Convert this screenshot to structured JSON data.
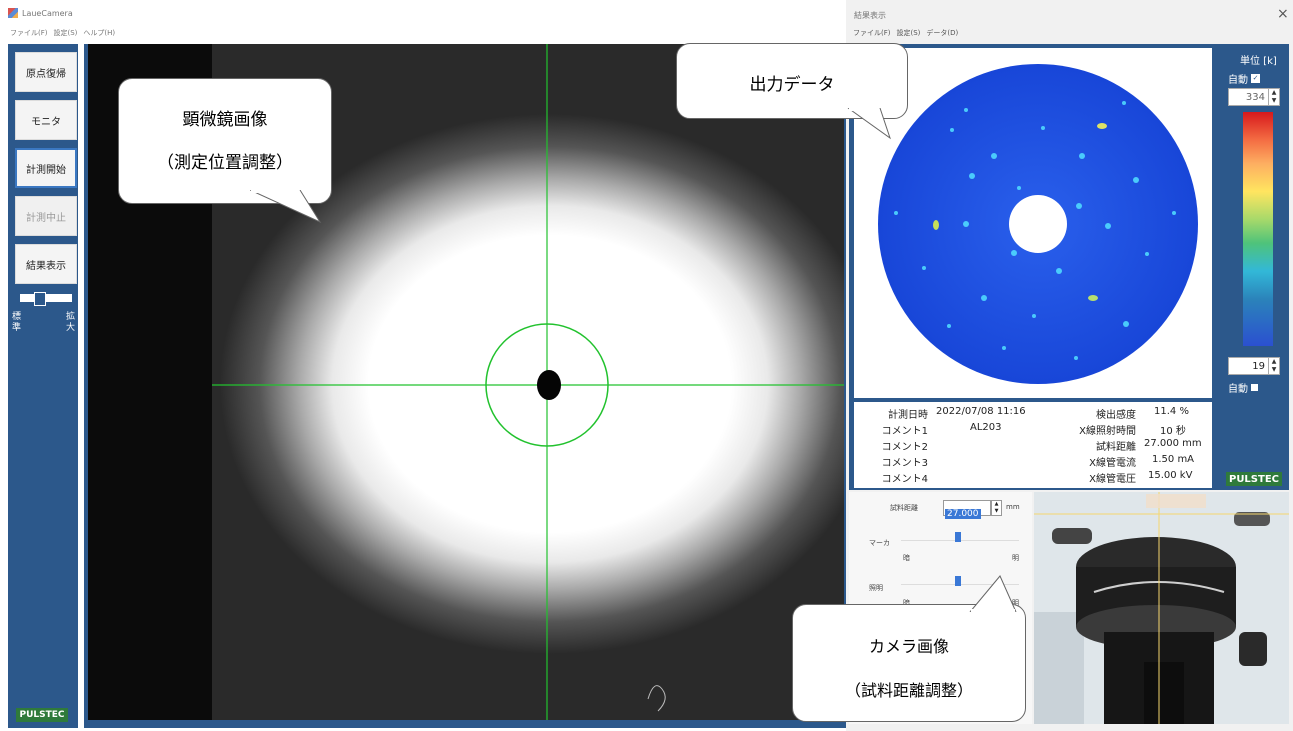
{
  "left_window": {
    "title": "LaueCamera",
    "menu": [
      "ファイル(F)",
      "設定(S)",
      "ヘルプ(H)"
    ],
    "sidebar": {
      "buttons": [
        "原点復帰",
        "モニタ",
        "計測開始",
        "計測中止",
        "結果表示"
      ],
      "zoom_labels": {
        "left_top": "標",
        "left_bottom": "準",
        "right_top": "拡",
        "right_bottom": "大"
      },
      "brand": "PULSTEC"
    },
    "callout_micro": {
      "line1": "顕微鏡画像",
      "line2": "（測定位置調整）"
    }
  },
  "right_window": {
    "title": "結果表示",
    "close": "×",
    "menu": [
      "ファイル(F)",
      "設定(S)",
      "データ(D)"
    ],
    "callout_output": "出力データ",
    "colorbar": {
      "unit": "単位 [k]",
      "auto_top": "自動",
      "max_value": "334",
      "min_value": "19",
      "auto_bottom": "自動",
      "auto_top_checked": true,
      "auto_bottom_checked": false
    },
    "info": {
      "left": [
        {
          "label": "計測日時",
          "value": "2022/07/08  11:16"
        },
        {
          "label": "コメント1",
          "value": "AL203"
        },
        {
          "label": "コメント2",
          "value": ""
        },
        {
          "label": "コメント3",
          "value": ""
        },
        {
          "label": "コメント4",
          "value": ""
        }
      ],
      "right": [
        {
          "label": "検出感度",
          "value": "11.4 %"
        },
        {
          "label": "X線照射時間",
          "value": "10 秒"
        },
        {
          "label": "試料距離",
          "value": "27.000 mm"
        },
        {
          "label": "X線管電流",
          "value": "1.50 mA"
        },
        {
          "label": "X線管電圧",
          "value": "15.00 kV"
        }
      ]
    },
    "brand": "PULSTEC",
    "controls": {
      "distance_label": "試料距離",
      "distance_value": "27.000",
      "distance_unit": "mm",
      "marker_label": "マーカ",
      "marker_dark": "暗",
      "marker_bright": "明",
      "light_label": "照明",
      "light_dark": "暗",
      "light_bright": "明"
    },
    "callout_camera": {
      "line1": "カメラ画像",
      "line2": "（試料距離調整）"
    }
  },
  "colors": {
    "panel_blue": "#2c588b",
    "brand_green": "#2f7a3b",
    "crosshair": "#22c22e",
    "pattern_blue": "#1f4fe0"
  }
}
